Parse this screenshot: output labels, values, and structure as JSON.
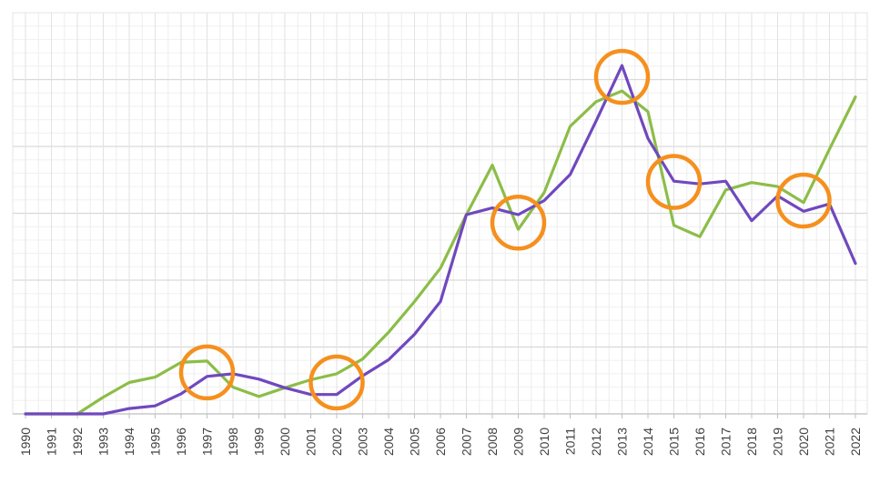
{
  "chart_data": {
    "type": "line",
    "categories": [
      "1990",
      "1991",
      "1992",
      "1993",
      "1994",
      "1995",
      "1996",
      "1997",
      "1998",
      "1999",
      "2000",
      "2001",
      "2002",
      "2003",
      "2004",
      "2005",
      "2006",
      "2007",
      "2008",
      "2009",
      "2010",
      "2011",
      "2012",
      "2013",
      "2014",
      "2015",
      "2016",
      "2017",
      "2018",
      "2019",
      "2020",
      "2021",
      "2022"
    ],
    "series": [
      {
        "color": "#8cbd48",
        "values": [
          0.0,
          0.0,
          0.0,
          0.25,
          0.47,
          0.55,
          0.77,
          0.79,
          0.4,
          0.26,
          0.39,
          0.51,
          0.6,
          0.82,
          1.22,
          1.68,
          2.18,
          2.98,
          3.72,
          2.76,
          3.31,
          4.3,
          4.67,
          4.83,
          4.52,
          2.82,
          2.65,
          3.35,
          3.46,
          3.4,
          3.16,
          3.96,
          4.74
        ]
      },
      {
        "color": "#7048be",
        "values": [
          0.0,
          0.0,
          0.0,
          0.0,
          0.08,
          0.12,
          0.3,
          0.56,
          0.6,
          0.52,
          0.39,
          0.29,
          0.29,
          0.57,
          0.81,
          1.19,
          1.68,
          2.98,
          3.08,
          2.98,
          3.19,
          3.58,
          4.38,
          5.21,
          4.12,
          3.48,
          3.44,
          3.48,
          2.89,
          3.26,
          3.03,
          3.14,
          2.25
        ]
      }
    ],
    "ylim": [
      0,
      6
    ],
    "y_gridlines": 6,
    "grid": true,
    "highlight_markers": {
      "color": "#f5901e",
      "categories": [
        "1997",
        "2002",
        "2009",
        "2013",
        "2015",
        "2020"
      ],
      "values": [
        0.62,
        0.47,
        2.86,
        5.04,
        3.47,
        3.19
      ]
    }
  }
}
